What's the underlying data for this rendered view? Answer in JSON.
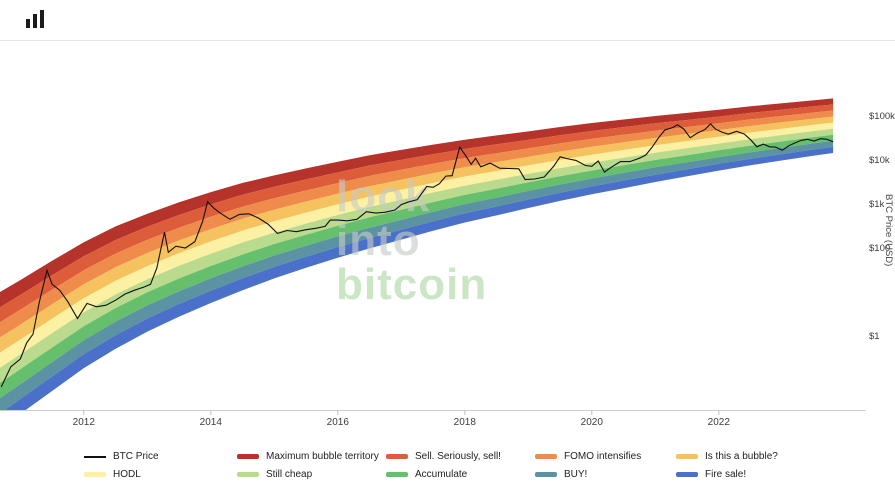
{
  "watermark": {
    "words": [
      "look",
      "into",
      "bitcoin"
    ],
    "colors": [
      "#c6ccc6",
      "#c6ccc6",
      "#abd8a2"
    ]
  },
  "chart_data": {
    "type": "line",
    "y_scale": "log",
    "ylabel": "BTC Price (USD)",
    "x_range_years": [
      2010.68,
      2024.3
    ],
    "grid": "off",
    "legend_position": "bottom",
    "y_ticks": [
      {
        "label": "$100k",
        "value": 100000
      },
      {
        "label": "$10k",
        "value": 10000
      },
      {
        "label": "$1k",
        "value": 1000
      },
      {
        "label": "$100",
        "value": 100
      },
      {
        "label": "$1",
        "value": 1
      }
    ],
    "x_ticks": [
      {
        "label": "2012",
        "year": 2012
      },
      {
        "label": "2014",
        "year": 2014
      },
      {
        "label": "2016",
        "year": 2016
      },
      {
        "label": "2018",
        "year": 2018
      },
      {
        "label": "2020",
        "year": 2020
      },
      {
        "label": "2022",
        "year": 2022
      }
    ],
    "price_series": {
      "name": "BTC Price",
      "color": "#111111",
      "years": [
        2010.7,
        2010.85,
        2011.0,
        2011.1,
        2011.2,
        2011.3,
        2011.42,
        2011.5,
        2011.62,
        2011.75,
        2011.9,
        2012.05,
        2012.2,
        2012.35,
        2012.5,
        2012.65,
        2012.8,
        2012.95,
        2013.05,
        2013.15,
        2013.27,
        2013.33,
        2013.45,
        2013.6,
        2013.75,
        2013.87,
        2013.95,
        2014.05,
        2014.15,
        2014.3,
        2014.45,
        2014.6,
        2014.75,
        2014.9,
        2015.05,
        2015.2,
        2015.35,
        2015.5,
        2015.65,
        2015.8,
        2015.88,
        2016.0,
        2016.15,
        2016.3,
        2016.45,
        2016.6,
        2016.75,
        2016.9,
        2017.0,
        2017.1,
        2017.25,
        2017.4,
        2017.5,
        2017.6,
        2017.7,
        2017.8,
        2017.92,
        2018.0,
        2018.1,
        2018.17,
        2018.25,
        2018.4,
        2018.55,
        2018.7,
        2018.85,
        2018.95,
        2019.1,
        2019.25,
        2019.4,
        2019.5,
        2019.6,
        2019.75,
        2019.9,
        2020.0,
        2020.1,
        2020.2,
        2020.3,
        2020.45,
        2020.6,
        2020.75,
        2020.85,
        2020.95,
        2021.05,
        2021.15,
        2021.28,
        2021.35,
        2021.45,
        2021.55,
        2021.65,
        2021.78,
        2021.87,
        2021.95,
        2022.05,
        2022.15,
        2022.28,
        2022.4,
        2022.5,
        2022.6,
        2022.7,
        2022.8,
        2022.9,
        2023.0,
        2023.1,
        2023.2,
        2023.3,
        2023.4,
        2023.5,
        2023.6,
        2023.7,
        2023.8
      ],
      "usd": [
        0.07,
        0.2,
        0.3,
        0.7,
        1.1,
        6,
        31,
        15,
        11,
        6,
        2.5,
        5.5,
        4.6,
        5,
        6.5,
        9,
        11,
        13,
        15,
        35,
        230,
        80,
        110,
        100,
        140,
        400,
        1130,
        800,
        620,
        450,
        580,
        600,
        480,
        350,
        215,
        250,
        235,
        260,
        280,
        310,
        430,
        430,
        415,
        450,
        670,
        620,
        650,
        730,
        970,
        1100,
        1250,
        2500,
        2400,
        2900,
        4300,
        4400,
        19500,
        13500,
        8000,
        11000,
        7000,
        8500,
        6500,
        6400,
        6300,
        3600,
        3700,
        4100,
        7200,
        11800,
        10800,
        9800,
        7500,
        7200,
        9500,
        5300,
        6800,
        9200,
        9200,
        11000,
        13000,
        19500,
        32000,
        48000,
        55000,
        63000,
        50000,
        32000,
        40000,
        49000,
        66000,
        50000,
        43000,
        38500,
        45000,
        39000,
        29000,
        20000,
        23000,
        20000,
        19500,
        16600,
        21000,
        24500,
        28000,
        29500,
        27000,
        30500,
        29500,
        26000
      ]
    },
    "rainbow_bands": {
      "names_top_to_bottom": [
        "Maximum bubble territory",
        "Sell. Seriously, sell!",
        "FOMO intensifies",
        "Is this a bubble?",
        "HODL",
        "Still cheap",
        "Accumulate",
        "BUY!",
        "Fire sale!"
      ],
      "colors_top_to_bottom": [
        "#b5332a",
        "#dd5d3b",
        "#ef8c4c",
        "#f6c15f",
        "#fcf0a2",
        "#bada8e",
        "#66bf6c",
        "#5b93a3",
        "#4a70c9"
      ],
      "model": {
        "years": [
          2010.68,
          2011,
          2011.5,
          2012,
          2012.5,
          2013,
          2013.5,
          2014,
          2014.5,
          2015,
          2015.5,
          2016,
          2016.5,
          2017,
          2017.5,
          2018,
          2018.5,
          2019,
          2019.5,
          2020,
          2020.5,
          2021,
          2021.5,
          2022,
          2022.5,
          2023,
          2023.5,
          2023.8
        ],
        "center_log10_usd": [
          -0.55,
          -0.25,
          0.23,
          0.7,
          1.1,
          1.44,
          1.74,
          2.01,
          2.26,
          2.48,
          2.68,
          2.87,
          3.05,
          3.21,
          3.37,
          3.52,
          3.65,
          3.78,
          3.91,
          4.03,
          4.14,
          4.25,
          4.35,
          4.45,
          4.55,
          4.64,
          4.73,
          4.78
        ],
        "halfwidth_log10": [
          1.55,
          1.52,
          1.48,
          1.43,
          1.39,
          1.34,
          1.3,
          1.26,
          1.22,
          1.17,
          1.13,
          1.09,
          1.06,
          1.02,
          0.98,
          0.94,
          0.91,
          0.87,
          0.84,
          0.81,
          0.78,
          0.75,
          0.72,
          0.69,
          0.67,
          0.65,
          0.63,
          0.62
        ]
      }
    }
  },
  "legend": {
    "rows": [
      [
        {
          "label": "BTC Price",
          "swatch": "line",
          "color": "#111111"
        },
        {
          "label": "Maximum bubble territory",
          "swatch": "band",
          "color": "#b5332a"
        },
        {
          "label": "Sell. Seriously, sell!",
          "swatch": "band",
          "color": "#dd5d3b"
        },
        {
          "label": "FOMO intensifies",
          "swatch": "band",
          "color": "#ef8c4c"
        },
        {
          "label": "Is this a bubble?",
          "swatch": "band",
          "color": "#f6c15f"
        }
      ],
      [
        {
          "label": "HODL",
          "swatch": "band",
          "color": "#fcf0a2"
        },
        {
          "label": "Still cheap",
          "swatch": "band",
          "color": "#bada8e"
        },
        {
          "label": "Accumulate",
          "swatch": "band",
          "color": "#66bf6c"
        },
        {
          "label": "BUY!",
          "swatch": "band",
          "color": "#5b93a3"
        },
        {
          "label": "Fire sale!",
          "swatch": "band",
          "color": "#4a70c9"
        }
      ]
    ]
  }
}
